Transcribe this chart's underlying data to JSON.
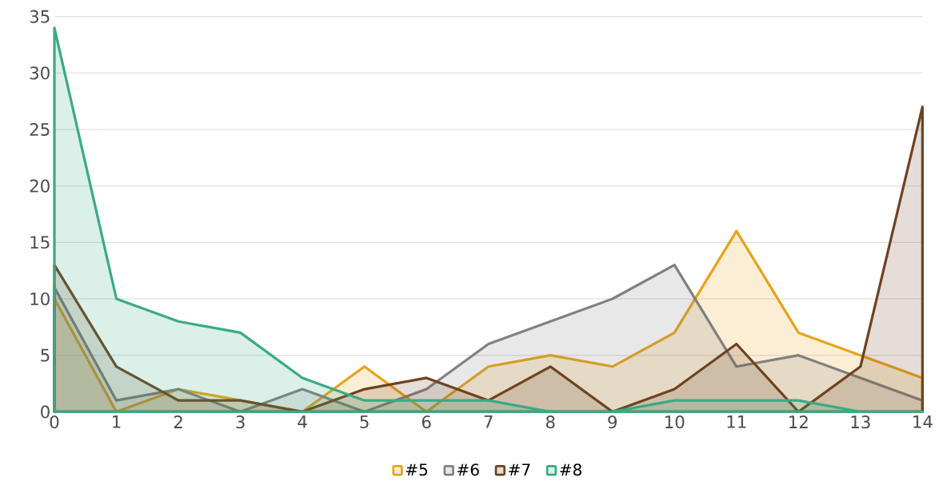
{
  "chart_data": {
    "type": "area",
    "x": [
      0,
      1,
      2,
      3,
      4,
      5,
      6,
      7,
      8,
      9,
      10,
      11,
      12,
      13,
      14
    ],
    "xlim": [
      0,
      14
    ],
    "xticks": [
      0,
      1,
      2,
      3,
      4,
      5,
      6,
      7,
      8,
      9,
      10,
      11,
      12,
      13,
      14
    ],
    "ylim": [
      0,
      35
    ],
    "yticks": [
      0,
      5,
      10,
      15,
      20,
      25,
      30,
      35
    ],
    "grid": "y",
    "legend": "bottom",
    "series": [
      {
        "name": "#5",
        "color": "#e8a317",
        "values": [
          10,
          0,
          2,
          1,
          0,
          4,
          0,
          4,
          5,
          4,
          7,
          16,
          7,
          5,
          3
        ]
      },
      {
        "name": "#6",
        "color": "#808080",
        "values": [
          11,
          1,
          2,
          0,
          2,
          0,
          2,
          6,
          8,
          10,
          13,
          4,
          5,
          3,
          1
        ]
      },
      {
        "name": "#7",
        "color": "#6e4220",
        "values": [
          13,
          4,
          1,
          1,
          0,
          2,
          3,
          1,
          4,
          0,
          2,
          6,
          0,
          4,
          27
        ]
      },
      {
        "name": "#8",
        "color": "#3aaa85",
        "values": [
          34,
          10,
          8,
          7,
          3,
          1,
          1,
          1,
          0,
          0,
          1,
          1,
          1,
          0,
          0
        ]
      }
    ]
  }
}
